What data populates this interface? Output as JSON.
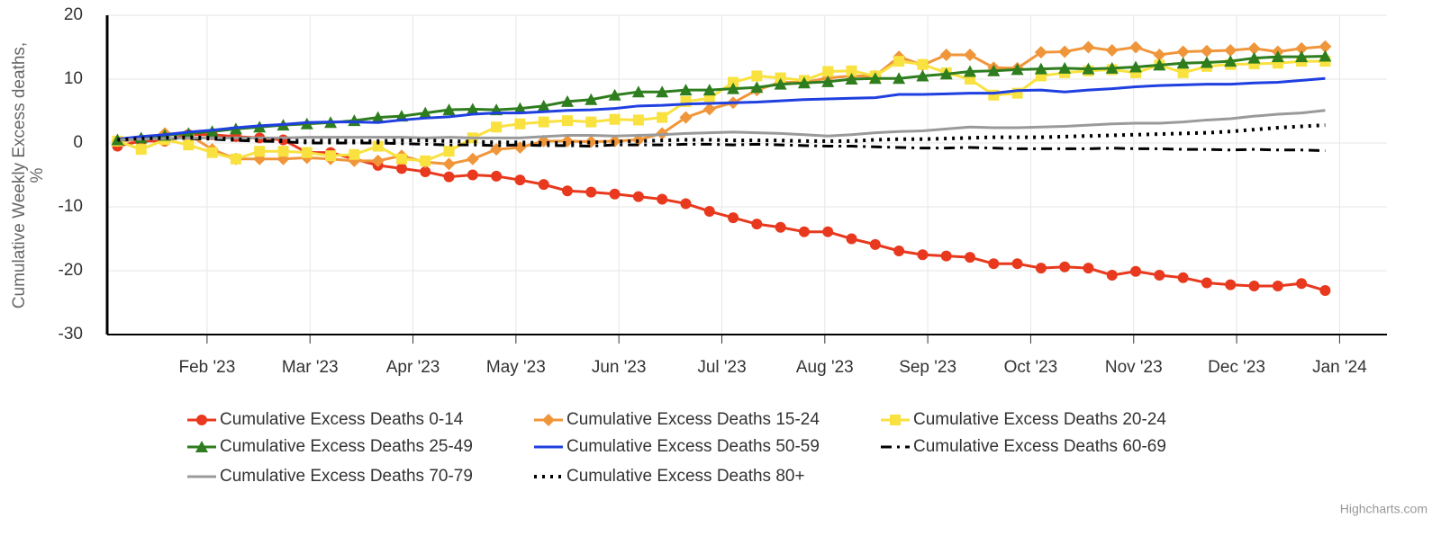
{
  "chart_data": {
    "type": "line",
    "ylabel": [
      "Cumulative Weekly Excess deaths,",
      "%"
    ],
    "credits": "Highcharts.com",
    "x": [
      0.13,
      0.36,
      0.59,
      0.82,
      1.05,
      1.28,
      1.51,
      1.74,
      1.97,
      2.2,
      2.43,
      2.66,
      2.89,
      3.12,
      3.35,
      3.58,
      3.81,
      4.04,
      4.27,
      4.5,
      4.73,
      4.96,
      5.19,
      5.42,
      5.65,
      5.88,
      6.11,
      6.34,
      6.57,
      6.8,
      7.03,
      7.26,
      7.49,
      7.72,
      7.95,
      8.18,
      8.41,
      8.64,
      8.87,
      9.1,
      9.33,
      9.56,
      9.79,
      10.02,
      10.25,
      10.48,
      10.71,
      10.94,
      11.17,
      11.4,
      11.63,
      11.86
    ],
    "xlim": [
      0.03,
      12.46
    ],
    "xticks": [
      {
        "value": 1,
        "label": "Feb '23"
      },
      {
        "value": 2,
        "label": "Mar '23"
      },
      {
        "value": 3,
        "label": "Apr '23"
      },
      {
        "value": 4,
        "label": "May '23"
      },
      {
        "value": 5,
        "label": "Jun '23"
      },
      {
        "value": 6,
        "label": "Jul '23"
      },
      {
        "value": 7,
        "label": "Aug '23"
      },
      {
        "value": 8,
        "label": "Sep '23"
      },
      {
        "value": 9,
        "label": "Oct '23"
      },
      {
        "value": 10,
        "label": "Nov '23"
      },
      {
        "value": 11,
        "label": "Dec '23"
      },
      {
        "value": 12,
        "label": "Jan '24"
      }
    ],
    "ylim": [
      -30,
      20
    ],
    "yticks": [
      -30,
      -20,
      -10,
      0,
      10,
      20
    ],
    "grid": true,
    "legend": "bottom",
    "series": [
      {
        "name": "Cumulative Excess Deaths 0-14",
        "color": "#e8391e",
        "marker": "circle",
        "dash": "solid",
        "values": [
          -0.5,
          0.3,
          0.3,
          1.3,
          1.3,
          1,
          0.8,
          0.5,
          -1.5,
          -1.5,
          -2.5,
          -3.5,
          -4,
          -4.5,
          -5.3,
          -5,
          -5.2,
          -5.8,
          -6.5,
          -7.5,
          -7.7,
          -8,
          -8.4,
          -8.8,
          -9.5,
          -10.7,
          -11.7,
          -12.7,
          -13.2,
          -13.9,
          -13.9,
          -15,
          -15.9,
          -16.9,
          -17.5,
          -17.7,
          -17.9,
          -18.9,
          -18.9,
          -19.6,
          -19.4,
          -19.6,
          -20.7,
          -20.1,
          -20.7,
          -21.1,
          -21.9,
          -22.2,
          -22.4,
          -22.4,
          -22,
          -23.1
        ]
      },
      {
        "name": "Cumulative Excess Deaths 15-24",
        "color": "#f0963a",
        "marker": "diamond",
        "dash": "solid",
        "values": [
          0.3,
          0.5,
          1.5,
          1.3,
          -1,
          -2.5,
          -2.5,
          -2.5,
          -2.3,
          -2.5,
          -2.8,
          -2.8,
          -2,
          -3,
          -3.3,
          -2.5,
          -1,
          -0.7,
          0.3,
          0.3,
          0.2,
          0.3,
          0.5,
          1.5,
          4,
          5.3,
          6.3,
          8.3,
          9.5,
          9.5,
          10.2,
          10.5,
          10.5,
          13.5,
          12.2,
          13.8,
          13.8,
          11.8,
          11.7,
          14.2,
          14.3,
          15,
          14.5,
          15,
          13.8,
          14.3,
          14.4,
          14.5,
          14.8,
          14.3,
          14.8,
          15.1
        ]
      },
      {
        "name": "Cumulative Excess Deaths 20-24",
        "color": "#f9e13f",
        "marker": "square",
        "dash": "solid",
        "values": [
          0.3,
          -1,
          0.5,
          -0.3,
          -1.5,
          -2.5,
          -1.3,
          -1.3,
          -1.5,
          -2,
          -1.8,
          -0.5,
          -2.5,
          -2.8,
          -1.3,
          0.8,
          2.5,
          3,
          3.3,
          3.5,
          3.3,
          3.7,
          3.6,
          4,
          6.5,
          7,
          9.5,
          10.5,
          10.2,
          9.8,
          11.2,
          11.3,
          10.5,
          12.8,
          12.3,
          11,
          10,
          7.5,
          7.8,
          10.5,
          11,
          11.3,
          11.5,
          11,
          12.2,
          11,
          12,
          12.3,
          12.4,
          12.5,
          12.8,
          12.8
        ]
      },
      {
        "name": "Cumulative Excess Deaths 25-49",
        "color": "#2e7d1e",
        "marker": "triangle",
        "dash": "solid",
        "values": [
          0.5,
          0.8,
          1.2,
          1.5,
          1.8,
          2.2,
          2.5,
          2.8,
          3,
          3.2,
          3.5,
          4,
          4.2,
          4.7,
          5.2,
          5.3,
          5.2,
          5.4,
          5.8,
          6.5,
          6.8,
          7.5,
          8,
          8,
          8.3,
          8.3,
          8.5,
          8.7,
          9.2,
          9.4,
          9.6,
          10,
          10.1,
          10.1,
          10.5,
          10.8,
          11.2,
          11.3,
          11.5,
          11.6,
          11.7,
          11.6,
          11.7,
          11.9,
          12.2,
          12.5,
          12.6,
          12.8,
          13.3,
          13.5,
          13.5,
          13.6
        ]
      },
      {
        "name": "Cumulative Excess Deaths 50-59",
        "color": "#1f3fe0",
        "marker": null,
        "dash": "solid",
        "values": [
          0.6,
          1,
          1.3,
          1.7,
          2,
          2.4,
          2.7,
          2.9,
          3.2,
          3.3,
          3.3,
          3.2,
          3.6,
          3.9,
          4.1,
          4.5,
          4.7,
          4.7,
          4.9,
          5.1,
          5.2,
          5.4,
          5.8,
          5.9,
          6.1,
          6.2,
          6.3,
          6.4,
          6.6,
          6.8,
          6.9,
          7,
          7.1,
          7.6,
          7.6,
          7.7,
          7.8,
          7.8,
          8.2,
          8.3,
          8,
          8.3,
          8.5,
          8.8,
          9,
          9.1,
          9.2,
          9.2,
          9.4,
          9.5,
          9.8,
          10.1
        ]
      },
      {
        "name": "Cumulative Excess Deaths 60-69",
        "color": "#000000",
        "marker": null,
        "dash": "dashdot",
        "values": [
          0.5,
          0.6,
          0.7,
          0.7,
          0.6,
          0.4,
          0.3,
          0.2,
          0,
          0,
          0,
          0,
          -0.1,
          -0.2,
          -0.3,
          -0.3,
          -0.4,
          -0.3,
          -0.4,
          -0.4,
          -0.5,
          -0.3,
          -0.3,
          -0.3,
          -0.2,
          -0.2,
          -0.3,
          -0.2,
          -0.3,
          -0.4,
          -0.5,
          -0.5,
          -0.6,
          -0.7,
          -0.8,
          -0.8,
          -0.7,
          -0.8,
          -0.9,
          -0.9,
          -0.9,
          -0.9,
          -0.8,
          -0.9,
          -0.9,
          -1,
          -1,
          -1.1,
          -1,
          -1.1,
          -1.1,
          -1.2
        ]
      },
      {
        "name": "Cumulative Excess Deaths 70-79",
        "color": "#9a9a9a",
        "marker": null,
        "dash": "solid",
        "values": [
          0.5,
          0.6,
          0.7,
          0.8,
          0.8,
          0.8,
          0.8,
          0.8,
          0.9,
          0.9,
          0.9,
          0.9,
          0.9,
          0.8,
          0.9,
          0.8,
          0.8,
          0.8,
          1,
          1.2,
          1.2,
          1.1,
          1.2,
          1.3,
          1.5,
          1.6,
          1.7,
          1.6,
          1.5,
          1.3,
          1.1,
          1.3,
          1.6,
          1.8,
          1.9,
          2.2,
          2.5,
          2.4,
          2.4,
          2.5,
          2.6,
          2.8,
          3,
          3.1,
          3.1,
          3.3,
          3.6,
          3.8,
          4.2,
          4.5,
          4.7,
          5.1
        ]
      },
      {
        "name": "Cumulative Excess Deaths 80+",
        "color": "#000000",
        "marker": null,
        "dash": "dot",
        "values": [
          0.5,
          0.7,
          0.8,
          0.9,
          0.8,
          0.6,
          0.5,
          0.4,
          0.3,
          0.4,
          0.3,
          0.3,
          0.4,
          0.4,
          0.3,
          0.2,
          0.1,
          0.1,
          0,
          0,
          0.1,
          0.2,
          0.3,
          0.4,
          0.5,
          0.5,
          0.4,
          0.4,
          0.4,
          0.3,
          0.3,
          0.3,
          0.5,
          0.6,
          0.6,
          0.7,
          0.8,
          0.9,
          0.9,
          0.9,
          1,
          1.1,
          1.2,
          1.3,
          1.4,
          1.5,
          1.6,
          1.8,
          2.1,
          2.4,
          2.6,
          2.8
        ]
      }
    ]
  }
}
